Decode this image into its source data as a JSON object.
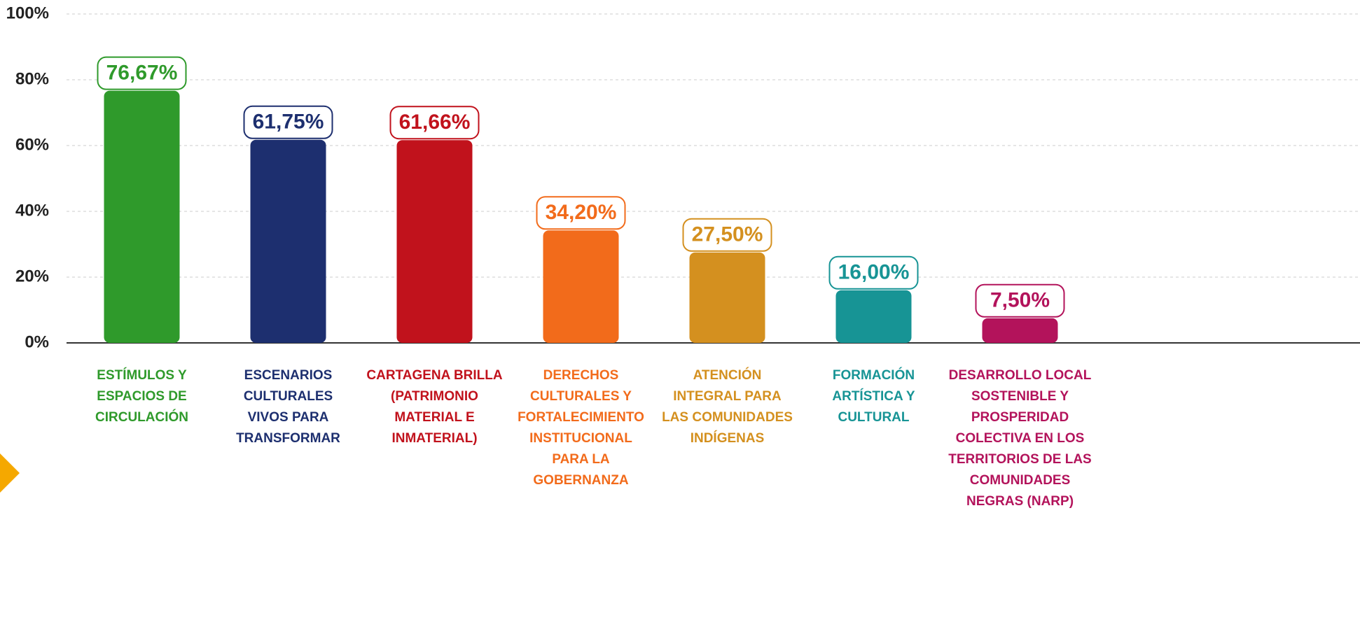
{
  "chart_data": {
    "type": "bar",
    "categories": [
      [
        "ESTÍMULOS Y",
        "ESPACIOS DE",
        "CIRCULACIÓN"
      ],
      [
        "ESCENARIOS",
        "CULTURALES",
        "VIVOS PARA",
        "TRANSFORMAR"
      ],
      [
        "CARTAGENA BRILLA",
        "(PATRIMONIO",
        "MATERIAL E",
        "INMATERIAL)"
      ],
      [
        "DERECHOS",
        "CULTURALES Y",
        "FORTALECIMIENTO",
        "INSTITUCIONAL",
        "PARA LA",
        "GOBERNANZA"
      ],
      [
        "ATENCIÓN",
        "INTEGRAL PARA",
        "LAS COMUNIDADES",
        "INDÍGENAS"
      ],
      [
        "FORMACIÓN",
        "ARTÍSTICA Y",
        "CULTURAL"
      ],
      [
        "DESARROLLO LOCAL",
        "SOSTENIBLE Y",
        "PROSPERIDAD",
        "COLECTIVA EN LOS",
        "TERRITORIOS DE LAS",
        "COMUNIDADES",
        "NEGRAS (NARP)"
      ]
    ],
    "values": [
      76.67,
      61.75,
      61.66,
      34.2,
      27.5,
      16.0,
      7.5
    ],
    "value_labels": [
      "76,67%",
      "61,75%",
      "61,66%",
      "34,20%",
      "27,50%",
      "16,00%",
      "7,50%"
    ],
    "colors": [
      "#2f9a2b",
      "#1d2f6f",
      "#c1121c",
      "#f26b1b",
      "#d4901f",
      "#179495",
      "#b3135b"
    ],
    "ylim": [
      0,
      100
    ],
    "yticks": [
      {
        "value": 0,
        "label": "0%"
      },
      {
        "value": 20,
        "label": "20%"
      },
      {
        "value": 40,
        "label": "40%"
      },
      {
        "value": 60,
        "label": "60%"
      },
      {
        "value": 80,
        "label": "80%"
      },
      {
        "value": 100,
        "label": "100%"
      }
    ],
    "grid": true
  }
}
